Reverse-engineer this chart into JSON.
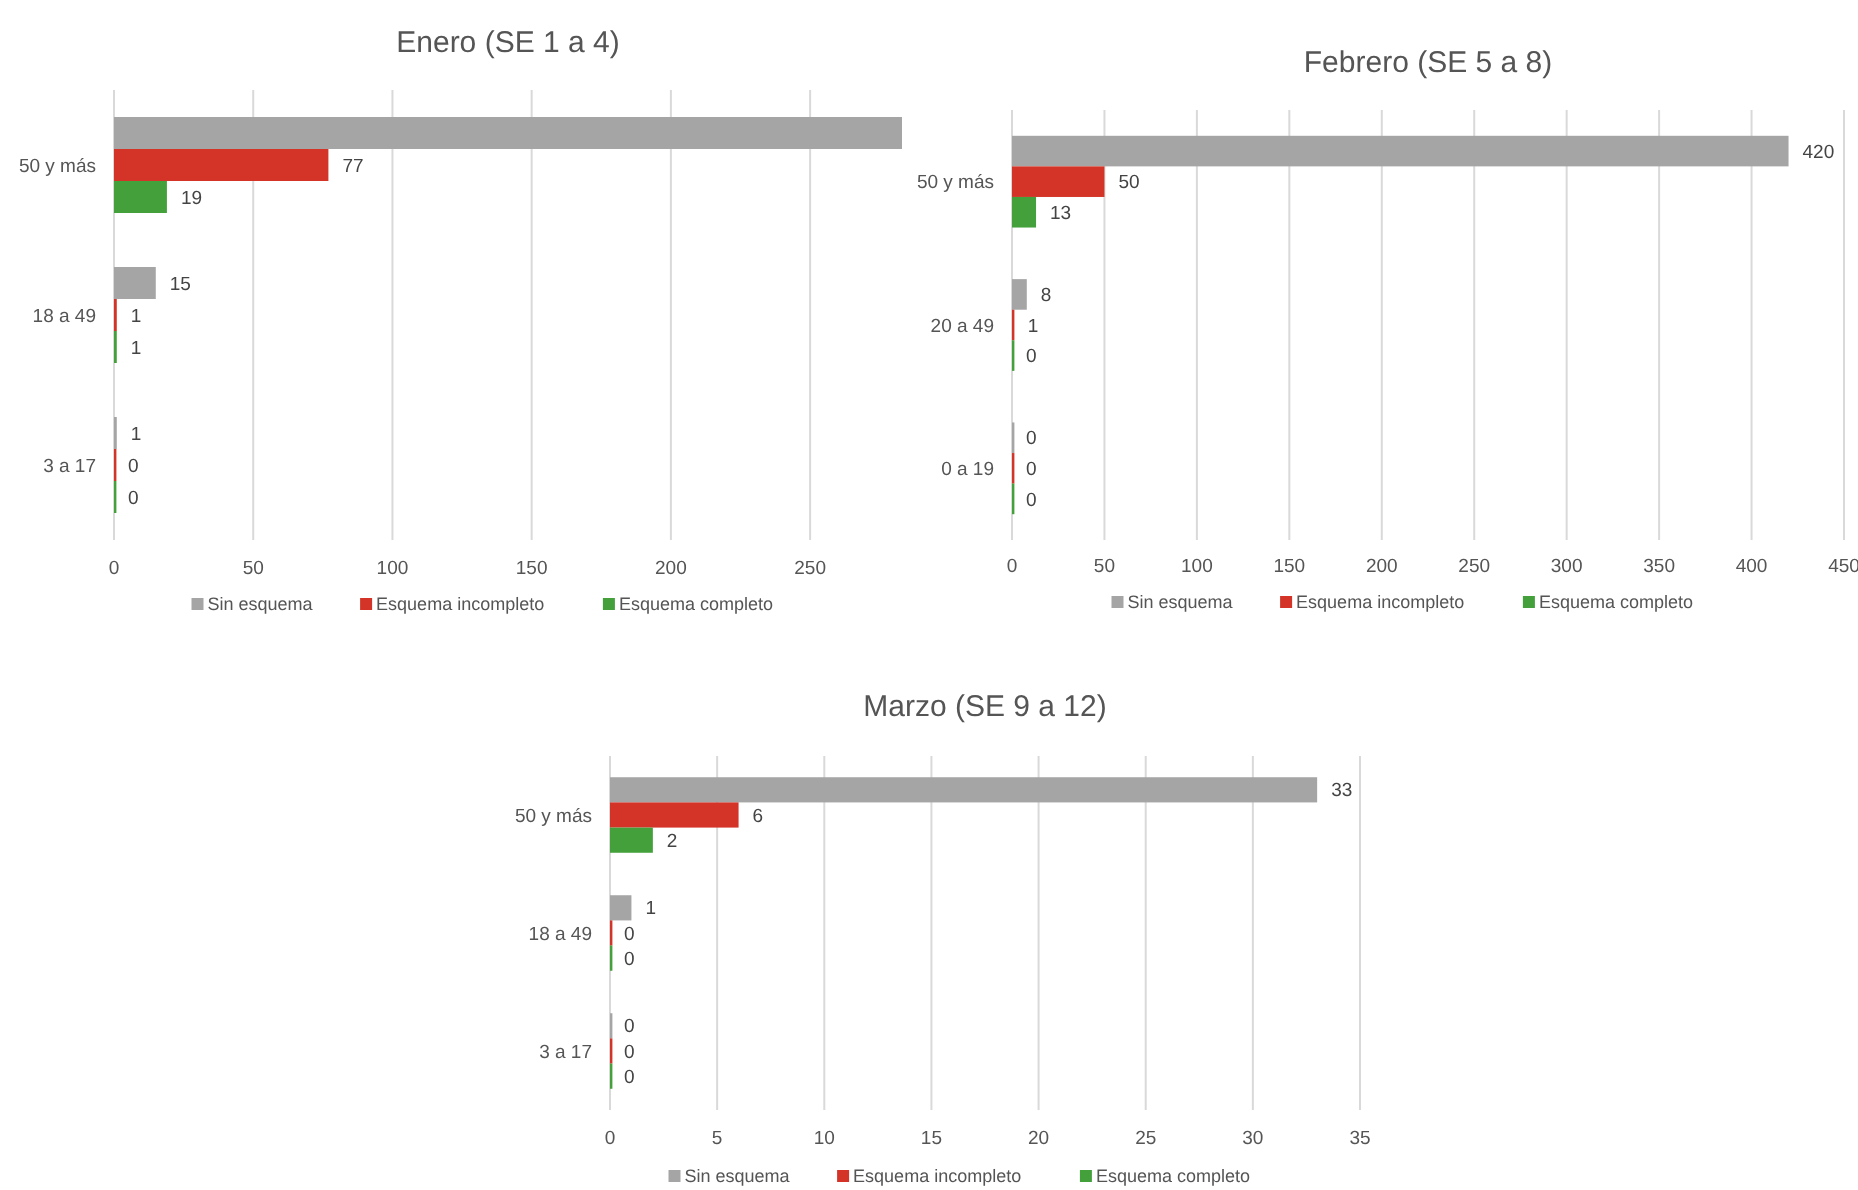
{
  "chart_data": [
    {
      "type": "bar",
      "orientation": "horizontal",
      "title": "Enero (SE 1 a 4)",
      "categories": [
        "50 y más",
        "18 a 49",
        "3 a 17"
      ],
      "xlim": [
        0,
        283
      ],
      "xticks": [
        0,
        50,
        100,
        150,
        200,
        250
      ],
      "grid": "x",
      "legend": "bottom",
      "series": [
        {
          "name": "Sin esquema",
          "color": "#a5a5a5",
          "values": [
            283,
            15,
            1
          ],
          "value_labels": [
            null,
            "15",
            "1"
          ]
        },
        {
          "name": "Esquema incompleto",
          "color": "#d33427",
          "values": [
            77,
            1,
            0
          ],
          "value_labels": [
            "77",
            "1",
            "0"
          ]
        },
        {
          "name": "Esquema completo",
          "color": "#43a03b",
          "values": [
            19,
            1,
            0
          ],
          "value_labels": [
            "19",
            "1",
            "0"
          ]
        }
      ]
    },
    {
      "type": "bar",
      "orientation": "horizontal",
      "title": "Febrero (SE 5 a 8)",
      "categories": [
        "50 y más",
        "20 a 49",
        "0 a 19"
      ],
      "xlim": [
        0,
        450
      ],
      "xticks": [
        0,
        50,
        100,
        150,
        200,
        250,
        300,
        350,
        400,
        450
      ],
      "grid": "x",
      "legend": "bottom",
      "data_labels": true,
      "series": [
        {
          "name": "Sin esquema",
          "color": "#a5a5a5",
          "values": [
            420,
            8,
            0
          ]
        },
        {
          "name": "Esquema incompleto",
          "color": "#d33427",
          "values": [
            50,
            1,
            0
          ]
        },
        {
          "name": "Esquema completo",
          "color": "#43a03b",
          "values": [
            13,
            0,
            0
          ]
        }
      ]
    },
    {
      "type": "bar",
      "orientation": "horizontal",
      "title": "Marzo (SE 9 a 12)",
      "categories": [
        "50 y más",
        "18 a 49",
        "3 a 17"
      ],
      "xlim": [
        0,
        35
      ],
      "xticks": [
        0,
        5,
        10,
        15,
        20,
        25,
        30,
        35
      ],
      "grid": "x",
      "legend": "bottom",
      "data_labels": true,
      "series": [
        {
          "name": "Sin esquema",
          "color": "#a5a5a5",
          "values": [
            33,
            1,
            0
          ]
        },
        {
          "name": "Esquema incompleto",
          "color": "#d33427",
          "values": [
            6,
            0,
            0
          ]
        },
        {
          "name": "Esquema completo",
          "color": "#43a03b",
          "values": [
            2,
            0,
            0
          ]
        }
      ]
    }
  ]
}
